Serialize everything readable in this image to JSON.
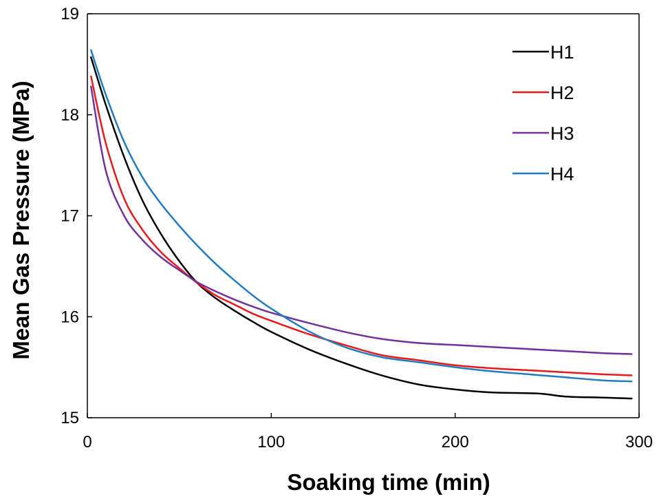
{
  "chart_data": {
    "type": "line",
    "xlabel": "Soaking time (min)",
    "ylabel": "Mean Gas Pressure (MPa)",
    "xlim": [
      0,
      300
    ],
    "ylim": [
      15,
      19
    ],
    "xticks": [
      0,
      100,
      200,
      300
    ],
    "yticks": [
      15,
      16,
      17,
      18,
      19
    ],
    "grid": false,
    "legend_position": "top-right",
    "series": [
      {
        "name": "H1",
        "color": "#000000",
        "x": [
          2,
          10,
          20,
          30,
          40,
          50,
          60,
          70,
          80,
          90,
          100,
          120,
          140,
          160,
          180,
          200,
          220,
          245,
          260,
          280,
          296
        ],
        "y": [
          18.57,
          18.1,
          17.58,
          17.15,
          16.82,
          16.55,
          16.33,
          16.18,
          16.06,
          15.95,
          15.85,
          15.68,
          15.54,
          15.42,
          15.33,
          15.28,
          15.25,
          15.24,
          15.21,
          15.2,
          15.19
        ]
      },
      {
        "name": "H2",
        "color": "#e8191a",
        "x": [
          2,
          10,
          20,
          30,
          40,
          50,
          60,
          70,
          80,
          90,
          100,
          120,
          140,
          160,
          180,
          200,
          220,
          240,
          260,
          280,
          296
        ],
        "y": [
          18.38,
          17.72,
          17.17,
          16.86,
          16.64,
          16.48,
          16.33,
          16.21,
          16.12,
          16.03,
          15.96,
          15.83,
          15.72,
          15.62,
          15.57,
          15.52,
          15.49,
          15.47,
          15.45,
          15.43,
          15.42
        ]
      },
      {
        "name": "H3",
        "color": "#7030a0",
        "x": [
          2,
          10,
          20,
          30,
          40,
          50,
          60,
          70,
          80,
          90,
          100,
          120,
          140,
          160,
          180,
          200,
          220,
          240,
          260,
          280,
          296
        ],
        "y": [
          18.28,
          17.45,
          17.0,
          16.76,
          16.59,
          16.46,
          16.34,
          16.25,
          16.17,
          16.1,
          16.04,
          15.94,
          15.85,
          15.78,
          15.74,
          15.72,
          15.7,
          15.68,
          15.66,
          15.64,
          15.63
        ]
      },
      {
        "name": "H4",
        "color": "#1f7cc1",
        "x": [
          2,
          10,
          20,
          30,
          40,
          50,
          60,
          70,
          80,
          90,
          100,
          120,
          140,
          160,
          180,
          200,
          220,
          240,
          260,
          280,
          296
        ],
        "y": [
          18.64,
          18.2,
          17.73,
          17.38,
          17.12,
          16.9,
          16.7,
          16.52,
          16.36,
          16.21,
          16.08,
          15.86,
          15.7,
          15.6,
          15.55,
          15.5,
          15.46,
          15.43,
          15.4,
          15.37,
          15.36
        ]
      }
    ]
  }
}
